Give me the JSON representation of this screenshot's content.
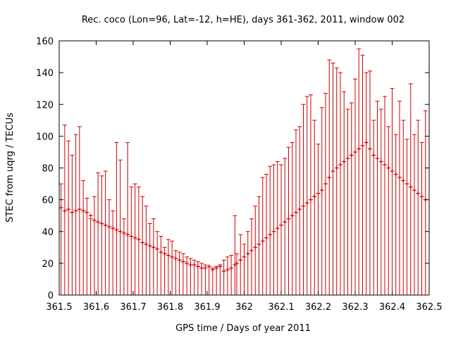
{
  "chart_data": {
    "type": "scatter",
    "title": "Rec. coco (Lon=96, Lat=-12, h=HE), days 361-362, 2011, window 002",
    "xlabel": "GPS time / Days of year 2011",
    "ylabel": "STEC from uqrg / TECUs",
    "xlim": [
      361.5,
      362.5
    ],
    "ylim": [
      0,
      160
    ],
    "x_ticks": [
      "361.5",
      "361.6",
      "361.7",
      "361.8",
      "361.9",
      "362",
      "362.1",
      "362.2",
      "362.3",
      "362.4",
      "362.5"
    ],
    "y_ticks": [
      "0",
      "20",
      "40",
      "60",
      "80",
      "100",
      "120",
      "140",
      "160"
    ],
    "grid": false,
    "error_bar_base": 0,
    "color": "#cc0000",
    "series": [
      {
        "x": [
          361.505,
          361.515,
          361.525,
          361.535,
          361.545,
          361.555,
          361.565,
          361.575,
          361.585,
          361.595,
          361.605,
          361.615,
          361.625,
          361.635,
          361.645,
          361.655,
          361.665,
          361.675,
          361.685,
          361.695,
          361.705,
          361.715,
          361.725,
          361.735,
          361.745,
          361.755,
          361.765,
          361.775,
          361.785,
          361.795,
          361.805,
          361.815,
          361.825,
          361.835,
          361.845,
          361.855,
          361.865,
          361.875,
          361.885,
          361.895,
          361.905,
          361.915,
          361.925,
          361.935,
          361.945,
          361.955,
          361.965,
          361.975
        ],
        "y": [
          55,
          53,
          54,
          52,
          53,
          54,
          53,
          52,
          50,
          47,
          46,
          45,
          44,
          43,
          42,
          41,
          40,
          39,
          38,
          37,
          36,
          35,
          33,
          32,
          31,
          30,
          29,
          27,
          26,
          25,
          24,
          23,
          22,
          21,
          20,
          19,
          19,
          18,
          17,
          17,
          18,
          16,
          17,
          18,
          15,
          16,
          17,
          19
        ],
        "err_hi": [
          70,
          107,
          97,
          88,
          101,
          106,
          72,
          61,
          48,
          62,
          77,
          75,
          78,
          60,
          53,
          96,
          85,
          48,
          96,
          68,
          70,
          68,
          62,
          56,
          45,
          48,
          40,
          37,
          30,
          35,
          34,
          28,
          27,
          26,
          24,
          23,
          22,
          21,
          20,
          19,
          18,
          17,
          18,
          19,
          22,
          24,
          25,
          50
        ]
      },
      {
        "x": [
          361.98,
          361.99,
          362.0,
          362.01,
          362.02,
          362.03,
          362.04,
          362.05,
          362.06,
          362.07,
          362.08,
          362.09,
          362.1,
          362.11,
          362.12,
          362.13,
          362.14,
          362.15,
          362.16,
          362.17,
          362.18,
          362.19,
          362.2,
          362.21,
          362.22,
          362.23,
          362.24,
          362.25,
          362.26,
          362.27,
          362.28,
          362.29,
          362.3,
          362.31,
          362.32,
          362.33,
          362.34,
          362.35,
          362.36,
          362.37,
          362.38,
          362.39,
          362.4,
          362.41,
          362.42,
          362.43,
          362.44,
          362.45,
          362.46,
          362.47,
          362.48,
          362.49
        ],
        "y": [
          20,
          22,
          24,
          26,
          28,
          30,
          32,
          34,
          36,
          38,
          40,
          42,
          44,
          46,
          48,
          50,
          52,
          54,
          56,
          58,
          60,
          62,
          64,
          66,
          70,
          74,
          78,
          80,
          82,
          84,
          86,
          88,
          90,
          92,
          94,
          96,
          92,
          88,
          86,
          84,
          82,
          80,
          78,
          76,
          74,
          72,
          70,
          68,
          66,
          64,
          62,
          60
        ],
        "err_hi": [
          26,
          38,
          32,
          40,
          48,
          56,
          62,
          74,
          76,
          81,
          82,
          84,
          82,
          86,
          93,
          96,
          104,
          106,
          120,
          125,
          126,
          110,
          95,
          118,
          127,
          148,
          146,
          143,
          140,
          128,
          117,
          121,
          136,
          155,
          151,
          140,
          141,
          110,
          122,
          117,
          125,
          106,
          130,
          101,
          122,
          110,
          98,
          133,
          101,
          110,
          96,
          116
        ]
      }
    ]
  }
}
